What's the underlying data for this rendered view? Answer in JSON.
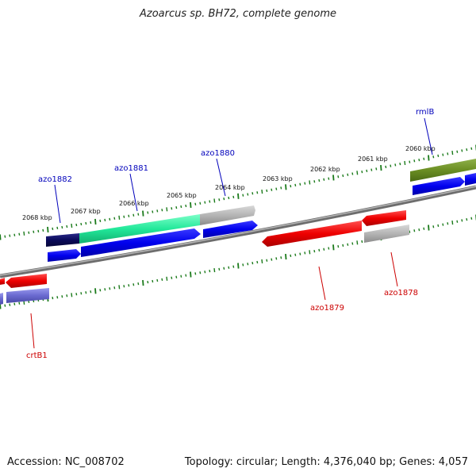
{
  "title": "Azoarcus sp. BH72, complete genome",
  "footer": {
    "accession": "Accession: NC_008702",
    "summary": "Topology: circular; Length: 4,376,040 bp; Genes: 4,057"
  },
  "ruler_labels": [
    "2060 kbp",
    "2061 kbp",
    "2062 kbp",
    "2063 kbp",
    "2064 kbp",
    "2065 kbp",
    "2066 kbp",
    "2067 kbp",
    "2068 kbp"
  ],
  "gene_labels": [
    {
      "name": "rmlB",
      "strand": "forward"
    },
    {
      "name": "azo1880",
      "strand": "forward"
    },
    {
      "name": "azo1881",
      "strand": "forward"
    },
    {
      "name": "azo1882",
      "strand": "forward"
    },
    {
      "name": "azo1879",
      "strand": "reverse"
    },
    {
      "name": "azo1878",
      "strand": "reverse"
    },
    {
      "name": "crtB1",
      "strand": "reverse"
    }
  ],
  "colors": {
    "forward_label": "#0000bb",
    "reverse_label": "#cc0000",
    "cds_forward": "#0000ee",
    "cds_reverse": "#ee0000",
    "tick": "#1a7a1a",
    "backbone": "#888888"
  }
}
